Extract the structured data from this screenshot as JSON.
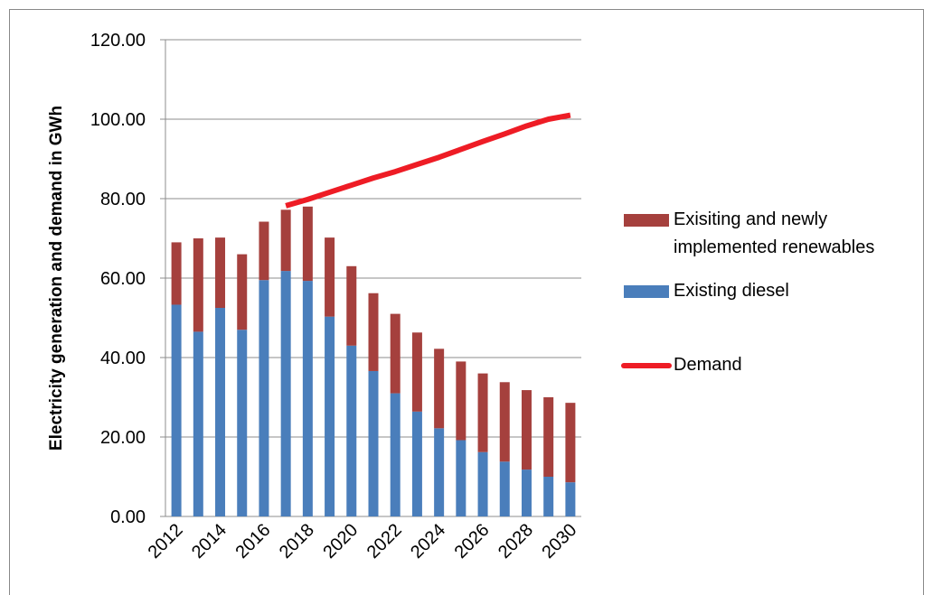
{
  "chart_data": {
    "type": "bar",
    "stacked": true,
    "y_label": "Electricity generation and demand in GWh",
    "categories": [
      "2012",
      null,
      "2014",
      null,
      "2016",
      null,
      "2018",
      null,
      "2020",
      null,
      "2022",
      null,
      "2024",
      null,
      "2026",
      null,
      "2028",
      null,
      "2030"
    ],
    "series": [
      {
        "name": "Exisiting and newly implemented renewables",
        "type": "bar",
        "color": "#a5403d",
        "values": [
          15.7,
          23.5,
          17.7,
          19,
          14.7,
          15.4,
          18.7,
          19.9,
          20,
          19.6,
          20,
          19.9,
          20,
          19.8,
          19.8,
          20,
          20,
          20,
          20
        ]
      },
      {
        "name": "Existing diesel",
        "type": "bar",
        "color": "#4a7ebb",
        "values": [
          53.3,
          46.5,
          52.5,
          47,
          59.5,
          61.8,
          59.3,
          50.3,
          43,
          36.6,
          31,
          26.4,
          22.2,
          19.2,
          16.2,
          13.8,
          11.8,
          10,
          8.6
        ]
      },
      {
        "name": "Demand",
        "type": "line",
        "color": "#ee1c25",
        "values": [
          null,
          null,
          null,
          null,
          null,
          78.2,
          79.8,
          81.6,
          83.4,
          85.2,
          86.8,
          88.6,
          90.4,
          92.4,
          94.4,
          96.3,
          98.3,
          100,
          101
        ]
      }
    ],
    "ylim": [
      0,
      120
    ],
    "yticks": [
      {
        "value": 0,
        "label": "0.00"
      },
      {
        "value": 20,
        "label": "20.00"
      },
      {
        "value": 40,
        "label": "40.00"
      },
      {
        "value": 60,
        "label": "60.00"
      },
      {
        "value": 80,
        "label": "80.00"
      },
      {
        "value": 100,
        "label": "100.00"
      },
      {
        "value": 120,
        "label": "120.00"
      }
    ],
    "grid": true,
    "legend": "right"
  }
}
